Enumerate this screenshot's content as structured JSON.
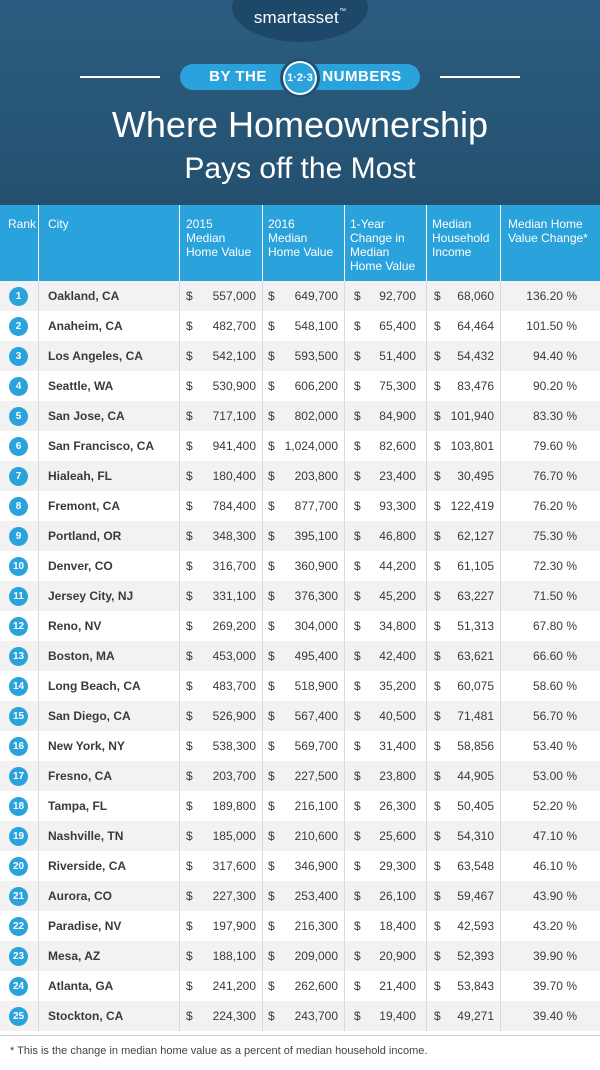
{
  "brand": {
    "logo_text": "smartasset",
    "logo_mark": "™"
  },
  "banner": {
    "left": "BY THE",
    "numbers": "1·2·3",
    "right": "NUMBERS"
  },
  "title": {
    "line1": "Where Homeownership",
    "line2": "Pays off the Most"
  },
  "columns": {
    "rank": "Rank",
    "city": "City",
    "v2015": [
      "2015",
      "Median",
      "Home Value"
    ],
    "v2016": [
      "2016",
      "Median",
      "Home Value"
    ],
    "change": [
      "1-Year",
      "Change in",
      "Median",
      "Home Value"
    ],
    "income": [
      "Median",
      "Household",
      "Income"
    ],
    "pct": [
      "Median Home",
      "Value Change*"
    ]
  },
  "rows": [
    {
      "rank": "1",
      "city": "Oakland, CA",
      "v2015": "557,000",
      "v2016": "649,700",
      "change": "92,700",
      "income": "68,060",
      "pct": "136.20 %"
    },
    {
      "rank": "2",
      "city": "Anaheim, CA",
      "v2015": "482,700",
      "v2016": "548,100",
      "change": "65,400",
      "income": "64,464",
      "pct": "101.50 %"
    },
    {
      "rank": "3",
      "city": "Los Angeles, CA",
      "v2015": "542,100",
      "v2016": "593,500",
      "change": "51,400",
      "income": "54,432",
      "pct": "94.40 %"
    },
    {
      "rank": "4",
      "city": "Seattle, WA",
      "v2015": "530,900",
      "v2016": "606,200",
      "change": "75,300",
      "income": "83,476",
      "pct": "90.20 %"
    },
    {
      "rank": "5",
      "city": "San Jose, CA",
      "v2015": "717,100",
      "v2016": "802,000",
      "change": "84,900",
      "income": "101,940",
      "pct": "83.30 %"
    },
    {
      "rank": "6",
      "city": "San Francisco, CA",
      "v2015": "941,400",
      "v2016": "1,024,000",
      "change": "82,600",
      "income": "103,801",
      "pct": "79.60 %"
    },
    {
      "rank": "7",
      "city": "Hialeah, FL",
      "v2015": "180,400",
      "v2016": "203,800",
      "change": "23,400",
      "income": "30,495",
      "pct": "76.70 %"
    },
    {
      "rank": "8",
      "city": "Fremont, CA",
      "v2015": "784,400",
      "v2016": "877,700",
      "change": "93,300",
      "income": "122,419",
      "pct": "76.20 %"
    },
    {
      "rank": "9",
      "city": "Portland, OR",
      "v2015": "348,300",
      "v2016": "395,100",
      "change": "46,800",
      "income": "62,127",
      "pct": "75.30 %"
    },
    {
      "rank": "10",
      "city": "Denver, CO",
      "v2015": "316,700",
      "v2016": "360,900",
      "change": "44,200",
      "income": "61,105",
      "pct": "72.30 %"
    },
    {
      "rank": "11",
      "city": "Jersey City, NJ",
      "v2015": "331,100",
      "v2016": "376,300",
      "change": "45,200",
      "income": "63,227",
      "pct": "71.50 %"
    },
    {
      "rank": "12",
      "city": "Reno, NV",
      "v2015": "269,200",
      "v2016": "304,000",
      "change": "34,800",
      "income": "51,313",
      "pct": "67.80 %"
    },
    {
      "rank": "13",
      "city": "Boston, MA",
      "v2015": "453,000",
      "v2016": "495,400",
      "change": "42,400",
      "income": "63,621",
      "pct": "66.60 %"
    },
    {
      "rank": "14",
      "city": "Long Beach, CA",
      "v2015": "483,700",
      "v2016": "518,900",
      "change": "35,200",
      "income": "60,075",
      "pct": "58.60 %"
    },
    {
      "rank": "15",
      "city": "San Diego, CA",
      "v2015": "526,900",
      "v2016": "567,400",
      "change": "40,500",
      "income": "71,481",
      "pct": "56.70 %"
    },
    {
      "rank": "16",
      "city": "New York, NY",
      "v2015": "538,300",
      "v2016": "569,700",
      "change": "31,400",
      "income": "58,856",
      "pct": "53.40 %"
    },
    {
      "rank": "17",
      "city": "Fresno, CA",
      "v2015": "203,700",
      "v2016": "227,500",
      "change": "23,800",
      "income": "44,905",
      "pct": "53.00 %"
    },
    {
      "rank": "18",
      "city": "Tampa, FL",
      "v2015": "189,800",
      "v2016": "216,100",
      "change": "26,300",
      "income": "50,405",
      "pct": "52.20 %"
    },
    {
      "rank": "19",
      "city": "Nashville, TN",
      "v2015": "185,000",
      "v2016": "210,600",
      "change": "25,600",
      "income": "54,310",
      "pct": "47.10 %"
    },
    {
      "rank": "20",
      "city": "Riverside, CA",
      "v2015": "317,600",
      "v2016": "346,900",
      "change": "29,300",
      "income": "63,548",
      "pct": "46.10 %"
    },
    {
      "rank": "21",
      "city": "Aurora, CO",
      "v2015": "227,300",
      "v2016": "253,400",
      "change": "26,100",
      "income": "59,467",
      "pct": "43.90 %"
    },
    {
      "rank": "22",
      "city": "Paradise, NV",
      "v2015": "197,900",
      "v2016": "216,300",
      "change": "18,400",
      "income": "42,593",
      "pct": "43.20 %"
    },
    {
      "rank": "23",
      "city": "Mesa, AZ",
      "v2015": "188,100",
      "v2016": "209,000",
      "change": "20,900",
      "income": "52,393",
      "pct": "39.90 %"
    },
    {
      "rank": "24",
      "city": "Atlanta, GA",
      "v2015": "241,200",
      "v2016": "262,600",
      "change": "21,400",
      "income": "53,843",
      "pct": "39.70 %"
    },
    {
      "rank": "25",
      "city": "Stockton, CA",
      "v2015": "224,300",
      "v2016": "243,700",
      "change": "19,400",
      "income": "49,271",
      "pct": "39.40 %"
    }
  ],
  "currency_symbol": "$",
  "footnote": "* This is the change in median home value as a percent of median household income.",
  "colors": {
    "header_bg": "#2c5d80",
    "accent": "#2aa2dc",
    "row_alt": "#f2f2f2"
  }
}
